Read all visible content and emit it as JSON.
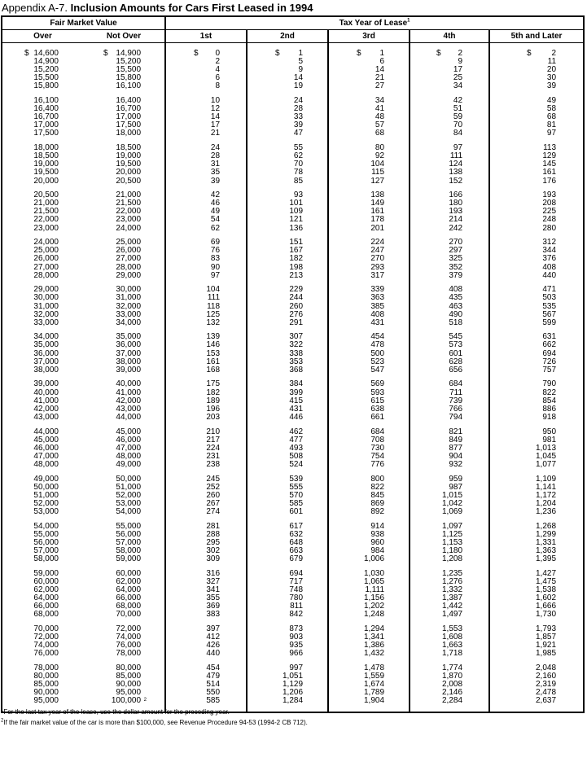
{
  "title": {
    "prefix": "Appendix A-7.",
    "main": "Inclusion Amounts for Cars First Leased in 1994"
  },
  "header": {
    "fmv": "Fair Market Value",
    "tax_year": "Tax Year of Lease",
    "tax_year_note": "1",
    "columns": [
      "Over",
      "Not Over",
      "1st",
      "2nd",
      "3rd",
      "4th",
      "5th and Later"
    ]
  },
  "currency_symbol": "$",
  "groups": [
    [
      [
        "14,600",
        "14,900",
        "0",
        "1",
        "1",
        "2",
        "2"
      ],
      [
        "14,900",
        "15,200",
        "2",
        "5",
        "6",
        "9",
        "11"
      ],
      [
        "15,200",
        "15,500",
        "4",
        "9",
        "14",
        "17",
        "20"
      ],
      [
        "15,500",
        "15,800",
        "6",
        "14",
        "21",
        "25",
        "30"
      ],
      [
        "15,800",
        "16,100",
        "8",
        "19",
        "27",
        "34",
        "39"
      ]
    ],
    [
      [
        "16,100",
        "16,400",
        "10",
        "24",
        "34",
        "42",
        "49"
      ],
      [
        "16,400",
        "16,700",
        "12",
        "28",
        "41",
        "51",
        "58"
      ],
      [
        "16,700",
        "17,000",
        "14",
        "33",
        "48",
        "59",
        "68"
      ],
      [
        "17,000",
        "17,500",
        "17",
        "39",
        "57",
        "70",
        "81"
      ],
      [
        "17,500",
        "18,000",
        "21",
        "47",
        "68",
        "84",
        "97"
      ]
    ],
    [
      [
        "18,000",
        "18,500",
        "24",
        "55",
        "80",
        "97",
        "113"
      ],
      [
        "18,500",
        "19,000",
        "28",
        "62",
        "92",
        "111",
        "129"
      ],
      [
        "19,000",
        "19,500",
        "31",
        "70",
        "104",
        "124",
        "145"
      ],
      [
        "19,500",
        "20,000",
        "35",
        "78",
        "115",
        "138",
        "161"
      ],
      [
        "20,000",
        "20,500",
        "39",
        "85",
        "127",
        "152",
        "176"
      ]
    ],
    [
      [
        "20,500",
        "21,000",
        "42",
        "93",
        "138",
        "166",
        "193"
      ],
      [
        "21,000",
        "21,500",
        "46",
        "101",
        "149",
        "180",
        "208"
      ],
      [
        "21,500",
        "22,000",
        "49",
        "109",
        "161",
        "193",
        "225"
      ],
      [
        "22,000",
        "23,000",
        "54",
        "121",
        "178",
        "214",
        "248"
      ],
      [
        "23,000",
        "24,000",
        "62",
        "136",
        "201",
        "242",
        "280"
      ]
    ],
    [
      [
        "24,000",
        "25,000",
        "69",
        "151",
        "224",
        "270",
        "312"
      ],
      [
        "25,000",
        "26,000",
        "76",
        "167",
        "247",
        "297",
        "344"
      ],
      [
        "26,000",
        "27,000",
        "83",
        "182",
        "270",
        "325",
        "376"
      ],
      [
        "27,000",
        "28,000",
        "90",
        "198",
        "293",
        "352",
        "408"
      ],
      [
        "28,000",
        "29,000",
        "97",
        "213",
        "317",
        "379",
        "440"
      ]
    ],
    [
      [
        "29,000",
        "30,000",
        "104",
        "229",
        "339",
        "408",
        "471"
      ],
      [
        "30,000",
        "31,000",
        "111",
        "244",
        "363",
        "435",
        "503"
      ],
      [
        "31,000",
        "32,000",
        "118",
        "260",
        "385",
        "463",
        "535"
      ],
      [
        "32,000",
        "33,000",
        "125",
        "276",
        "408",
        "490",
        "567"
      ],
      [
        "33,000",
        "34,000",
        "132",
        "291",
        "431",
        "518",
        "599"
      ]
    ],
    [
      [
        "34,000",
        "35,000",
        "139",
        "307",
        "454",
        "545",
        "631"
      ],
      [
        "35,000",
        "36,000",
        "146",
        "322",
        "478",
        "573",
        "662"
      ],
      [
        "36,000",
        "37,000",
        "153",
        "338",
        "500",
        "601",
        "694"
      ],
      [
        "37,000",
        "38,000",
        "161",
        "353",
        "523",
        "628",
        "726"
      ],
      [
        "38,000",
        "39,000",
        "168",
        "368",
        "547",
        "656",
        "757"
      ]
    ],
    [
      [
        "39,000",
        "40,000",
        "175",
        "384",
        "569",
        "684",
        "790"
      ],
      [
        "40,000",
        "41,000",
        "182",
        "399",
        "593",
        "711",
        "822"
      ],
      [
        "41,000",
        "42,000",
        "189",
        "415",
        "615",
        "739",
        "854"
      ],
      [
        "42,000",
        "43,000",
        "196",
        "431",
        "638",
        "766",
        "886"
      ],
      [
        "43,000",
        "44,000",
        "203",
        "446",
        "661",
        "794",
        "918"
      ]
    ],
    [
      [
        "44,000",
        "45,000",
        "210",
        "462",
        "684",
        "821",
        "950"
      ],
      [
        "45,000",
        "46,000",
        "217",
        "477",
        "708",
        "849",
        "981"
      ],
      [
        "46,000",
        "47,000",
        "224",
        "493",
        "730",
        "877",
        "1,013"
      ],
      [
        "47,000",
        "48,000",
        "231",
        "508",
        "754",
        "904",
        "1,045"
      ],
      [
        "48,000",
        "49,000",
        "238",
        "524",
        "776",
        "932",
        "1,077"
      ]
    ],
    [
      [
        "49,000",
        "50,000",
        "245",
        "539",
        "800",
        "959",
        "1,109"
      ],
      [
        "50,000",
        "51,000",
        "252",
        "555",
        "822",
        "987",
        "1,141"
      ],
      [
        "51,000",
        "52,000",
        "260",
        "570",
        "845",
        "1,015",
        "1,172"
      ],
      [
        "52,000",
        "53,000",
        "267",
        "585",
        "869",
        "1,042",
        "1,204"
      ],
      [
        "53,000",
        "54,000",
        "274",
        "601",
        "892",
        "1,069",
        "1,236"
      ]
    ],
    [
      [
        "54,000",
        "55,000",
        "281",
        "617",
        "914",
        "1,097",
        "1,268"
      ],
      [
        "55,000",
        "56,000",
        "288",
        "632",
        "938",
        "1,125",
        "1,299"
      ],
      [
        "56,000",
        "57,000",
        "295",
        "648",
        "960",
        "1,153",
        "1,331"
      ],
      [
        "57,000",
        "58,000",
        "302",
        "663",
        "984",
        "1,180",
        "1,363"
      ],
      [
        "58,000",
        "59,000",
        "309",
        "679",
        "1,006",
        "1,208",
        "1,395"
      ]
    ],
    [
      [
        "59,000",
        "60,000",
        "316",
        "694",
        "1,030",
        "1,235",
        "1,427"
      ],
      [
        "60,000",
        "62,000",
        "327",
        "717",
        "1,065",
        "1,276",
        "1,475"
      ],
      [
        "62,000",
        "64,000",
        "341",
        "748",
        "1,111",
        "1,332",
        "1,538"
      ],
      [
        "64,000",
        "66,000",
        "355",
        "780",
        "1,156",
        "1,387",
        "1,602"
      ],
      [
        "66,000",
        "68,000",
        "369",
        "811",
        "1,202",
        "1,442",
        "1,666"
      ],
      [
        "68,000",
        "70,000",
        "383",
        "842",
        "1,248",
        "1,497",
        "1,730"
      ]
    ],
    [
      [
        "70,000",
        "72,000",
        "397",
        "873",
        "1,294",
        "1,553",
        "1,793"
      ],
      [
        "72,000",
        "74,000",
        "412",
        "903",
        "1,341",
        "1,608",
        "1,857"
      ],
      [
        "74,000",
        "76,000",
        "426",
        "935",
        "1,386",
        "1,663",
        "1,921"
      ],
      [
        "76,000",
        "78,000",
        "440",
        "966",
        "1,432",
        "1,718",
        "1,985"
      ]
    ],
    [
      [
        "78,000",
        "80,000",
        "454",
        "997",
        "1,478",
        "1,774",
        "2,048"
      ],
      [
        "80,000",
        "85,000",
        "479",
        "1,051",
        "1,559",
        "1,870",
        "2,160"
      ],
      [
        "85,000",
        "90,000",
        "514",
        "1,129",
        "1,674",
        "2,008",
        "2,319"
      ],
      [
        "90,000",
        "95,000",
        "550",
        "1,206",
        "1,789",
        "2,146",
        "2,478"
      ],
      [
        "95,000",
        "100,000",
        "585",
        "1,284",
        "1,904",
        "2,284",
        "2,637"
      ]
    ]
  ],
  "last_row_note": "2",
  "footnotes": [
    {
      "mark": "1",
      "text": "For the last tax year of the lease, use the dollar amount for the preceding year."
    },
    {
      "mark": "2",
      "text": "If the fair market value of the car is more than $100,000, see Revenue Procedure 94-53 (1994-2 CB 712)."
    }
  ]
}
